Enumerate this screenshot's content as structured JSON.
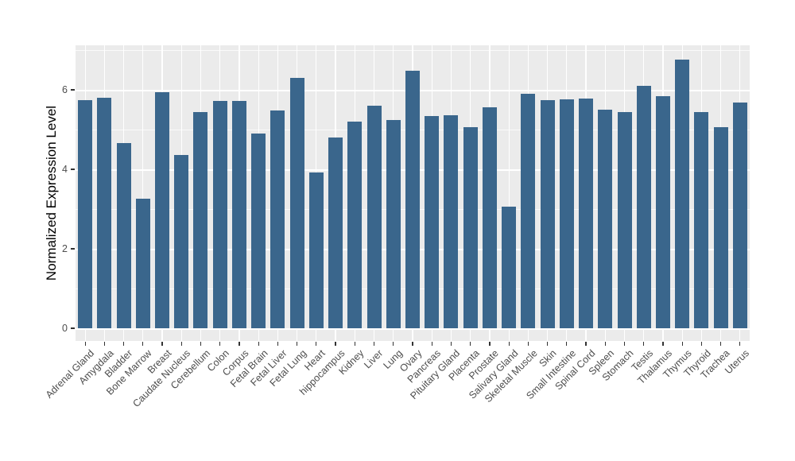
{
  "chart_data": {
    "type": "bar",
    "title": "",
    "xlabel": "",
    "ylabel": "Normalized Expression Level",
    "ylim": [
      0,
      7.1
    ],
    "yticks": [
      0,
      2,
      4,
      6
    ],
    "yticks_minor": [
      1,
      3,
      5,
      7
    ],
    "grid": true,
    "legend": "none",
    "categories": [
      "Adrenal Gland",
      "Amygdala",
      "Bladder",
      "Bone Marrow",
      "Breast",
      "Caudate Nucleus",
      "Cerebellum",
      "Colon",
      "Corpus",
      "Fetal Brain",
      "Fetal Liver",
      "Fetal Lung",
      "Heart",
      "hippocampus",
      "Kidney",
      "Liver",
      "Lung",
      "Ovary",
      "Pancreas",
      "Pituitary Gland",
      "Placenta",
      "Prostate",
      "Salivary Gland",
      "Skeletal Muscle",
      "Skin",
      "Small Intestine",
      "Spinal Cord",
      "Spleen",
      "Stomach",
      "Testis",
      "Thalamus",
      "Thymus",
      "Thyroid",
      "Trachea",
      "Uterus"
    ],
    "values": [
      5.75,
      5.8,
      4.67,
      3.27,
      5.95,
      4.37,
      5.44,
      5.72,
      5.72,
      4.91,
      5.48,
      6.3,
      3.92,
      4.8,
      5.2,
      5.6,
      5.24,
      6.48,
      5.34,
      5.36,
      5.06,
      5.56,
      3.07,
      5.9,
      5.75,
      5.77,
      5.78,
      5.5,
      5.45,
      6.1,
      5.85,
      6.77,
      5.44,
      5.07,
      5.68
    ],
    "colors": {
      "bar_fill": "#3A668C",
      "panel_background": "#EBEBEB",
      "gridline": "#FFFFFF",
      "axis_text": "#4D4D4D",
      "axis_title": "#000000",
      "figure_background": "#FFFFFF"
    }
  }
}
